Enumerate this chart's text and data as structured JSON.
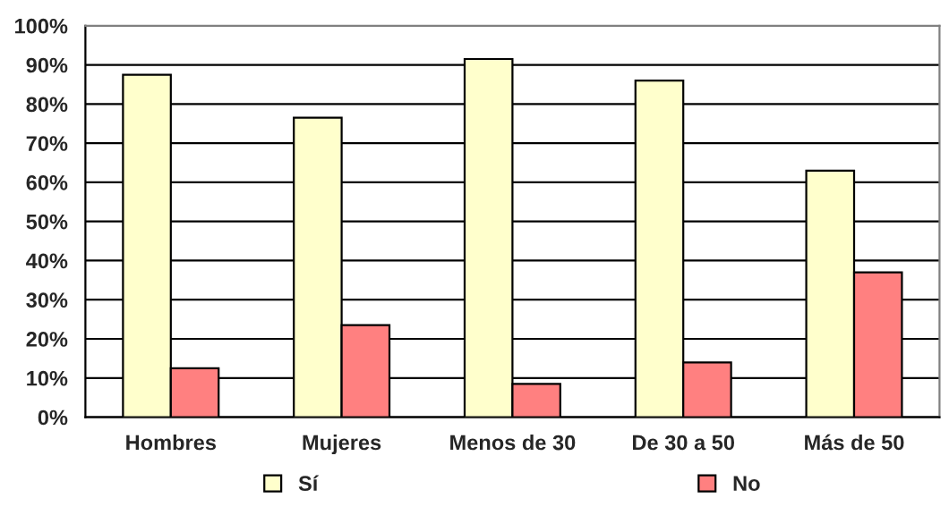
{
  "chart_data": {
    "type": "bar",
    "categories": [
      "Hombres",
      "Mujeres",
      "Menos de 30",
      "De 30 a 50",
      "Más de 50"
    ],
    "series": [
      {
        "name": "Sí",
        "color": "#ffffcc",
        "values": [
          87.5,
          76.5,
          91.5,
          86,
          63
        ]
      },
      {
        "name": "No",
        "color": "#ff8080",
        "values": [
          12.5,
          23.5,
          8.5,
          14,
          37
        ]
      }
    ],
    "ylim": [
      0,
      100
    ],
    "yticks": [
      {
        "value": 0,
        "label": "0%"
      },
      {
        "value": 10,
        "label": "10%"
      },
      {
        "value": 20,
        "label": "20%"
      },
      {
        "value": 30,
        "label": "30%"
      },
      {
        "value": 40,
        "label": "40%"
      },
      {
        "value": 50,
        "label": "50%"
      },
      {
        "value": 60,
        "label": "60%"
      },
      {
        "value": 70,
        "label": "70%"
      },
      {
        "value": 80,
        "label": "80%"
      },
      {
        "value": 90,
        "label": "90%"
      },
      {
        "value": 100,
        "label": "100%"
      }
    ],
    "grid": "y",
    "legend": "bottom"
  }
}
